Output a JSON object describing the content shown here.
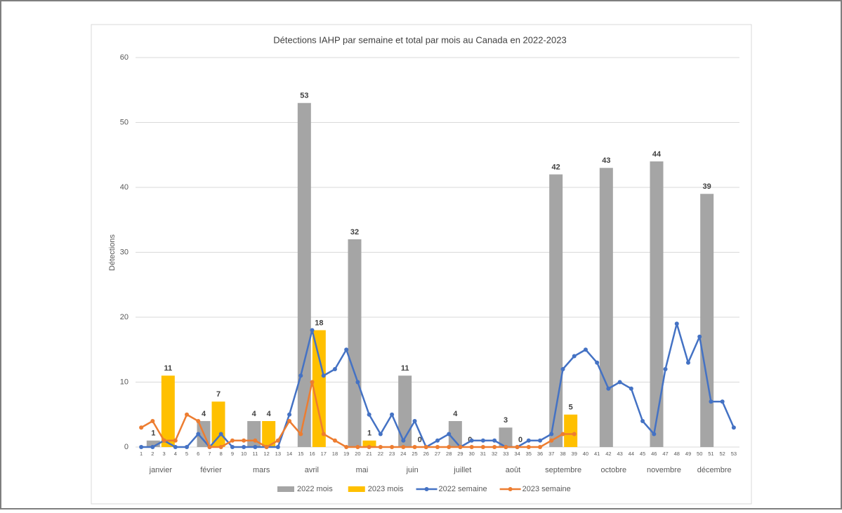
{
  "chart_data": {
    "type": "combo",
    "title": "Détections IAHP par semaine et total par mois au Canada en 2022-2023",
    "y_label": "Détections",
    "categories": [
      "janvier",
      "février",
      "mars",
      "avril",
      "mai",
      "juin",
      "juillet",
      "août",
      "septembre",
      "octobre",
      "novembre",
      "décembre"
    ],
    "x": [
      1,
      2,
      3,
      4,
      5,
      6,
      7,
      8,
      9,
      10,
      11,
      12,
      13,
      14,
      15,
      16,
      17,
      18,
      19,
      20,
      21,
      22,
      23,
      24,
      25,
      26,
      27,
      28,
      29,
      30,
      31,
      32,
      33,
      34,
      35,
      36,
      37,
      38,
      39,
      40,
      41,
      42,
      43,
      44,
      45,
      46,
      47,
      48,
      49,
      50,
      51,
      52,
      53
    ],
    "xlim": [
      0.5,
      53.5
    ],
    "ylim": [
      0,
      60
    ],
    "yticks": [
      0,
      10,
      20,
      30,
      40,
      50,
      60
    ],
    "grid": true,
    "legend": "bottom",
    "series": [
      {
        "name": "2022 mois",
        "type": "bar",
        "color": "#a5a5a5",
        "values": [
          1,
          4,
          4,
          53,
          32,
          11,
          4,
          3,
          42,
          43,
          44,
          39
        ]
      },
      {
        "name": "2023 mois",
        "type": "bar",
        "color": "#ffc000",
        "values": [
          11,
          7,
          4,
          18,
          1,
          0,
          0,
          0,
          5,
          null,
          null,
          null
        ]
      },
      {
        "name": "2022 semaine",
        "type": "line",
        "color": "#4472c4",
        "values": [
          0,
          0,
          1,
          0,
          0,
          2,
          0,
          2,
          0,
          0,
          0,
          0,
          0,
          5,
          11,
          18,
          11,
          12,
          15,
          10,
          5,
          2,
          5,
          1,
          4,
          0,
          1,
          2,
          0,
          1,
          1,
          1,
          0,
          0,
          1,
          1,
          2,
          12,
          14,
          15,
          13,
          9,
          10,
          9,
          4,
          2,
          12,
          19,
          13,
          17,
          7,
          7,
          3
        ]
      },
      {
        "name": "2023 semaine",
        "type": "line",
        "color": "#ed7d31",
        "values": [
          3,
          4,
          1,
          1,
          5,
          4,
          0,
          0,
          1,
          1,
          1,
          0,
          1,
          4,
          2,
          10,
          2,
          1,
          0,
          0,
          0,
          0,
          0,
          0,
          0,
          0,
          0,
          0,
          0,
          0,
          0,
          0,
          0,
          0,
          0,
          0,
          1,
          2,
          2,
          null,
          null,
          null,
          null,
          null,
          null,
          null,
          null,
          null,
          null,
          null,
          null,
          null,
          null
        ]
      }
    ]
  }
}
